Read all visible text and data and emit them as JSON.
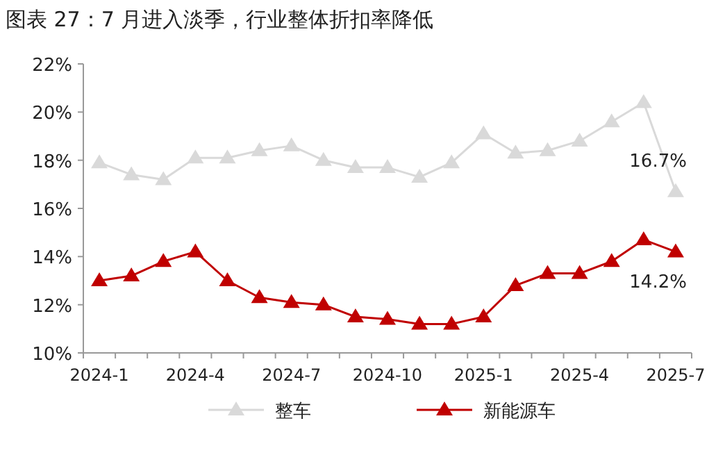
{
  "chart_data": {
    "type": "line",
    "title": "图表 27：7 月进入淡季，行业整体折扣率降低",
    "categories": [
      "2024-1",
      null,
      null,
      "2024-4",
      null,
      null,
      "2024-7",
      null,
      null,
      "2024-10",
      null,
      null,
      "2025-1",
      null,
      null,
      "2025-4",
      null,
      null,
      "2025-7"
    ],
    "series": [
      {
        "name": "整车",
        "color": "#d9d9d9",
        "values": [
          17.9,
          17.4,
          17.2,
          18.1,
          18.1,
          18.4,
          18.6,
          18.0,
          17.7,
          17.7,
          17.3,
          17.9,
          19.1,
          18.3,
          18.4,
          18.8,
          19.6,
          20.4,
          16.7
        ],
        "value_labels": [
          null,
          null,
          null,
          null,
          null,
          null,
          null,
          null,
          null,
          null,
          null,
          null,
          null,
          null,
          null,
          null,
          null,
          null,
          "16.7%"
        ]
      },
      {
        "name": "新能源车",
        "color": "#c00000",
        "values": [
          13.0,
          13.2,
          13.8,
          14.2,
          13.0,
          12.3,
          12.1,
          12.0,
          11.5,
          11.4,
          11.2,
          11.2,
          11.5,
          12.8,
          13.3,
          13.3,
          13.8,
          14.7,
          14.2
        ],
        "value_labels": [
          null,
          null,
          null,
          null,
          null,
          null,
          null,
          null,
          null,
          null,
          null,
          null,
          null,
          null,
          null,
          null,
          null,
          null,
          "14.2%"
        ]
      }
    ],
    "ylim": [
      10,
      22
    ],
    "yticks": [
      {
        "value": 10,
        "label": "10%"
      },
      {
        "value": 12,
        "label": "12%"
      },
      {
        "value": 14,
        "label": "14%"
      },
      {
        "value": 16,
        "label": "16%"
      },
      {
        "value": 18,
        "label": "18%"
      },
      {
        "value": 20,
        "label": "20%"
      },
      {
        "value": 22,
        "label": "22%"
      }
    ],
    "marker": "triangle",
    "legend": "bottom"
  }
}
